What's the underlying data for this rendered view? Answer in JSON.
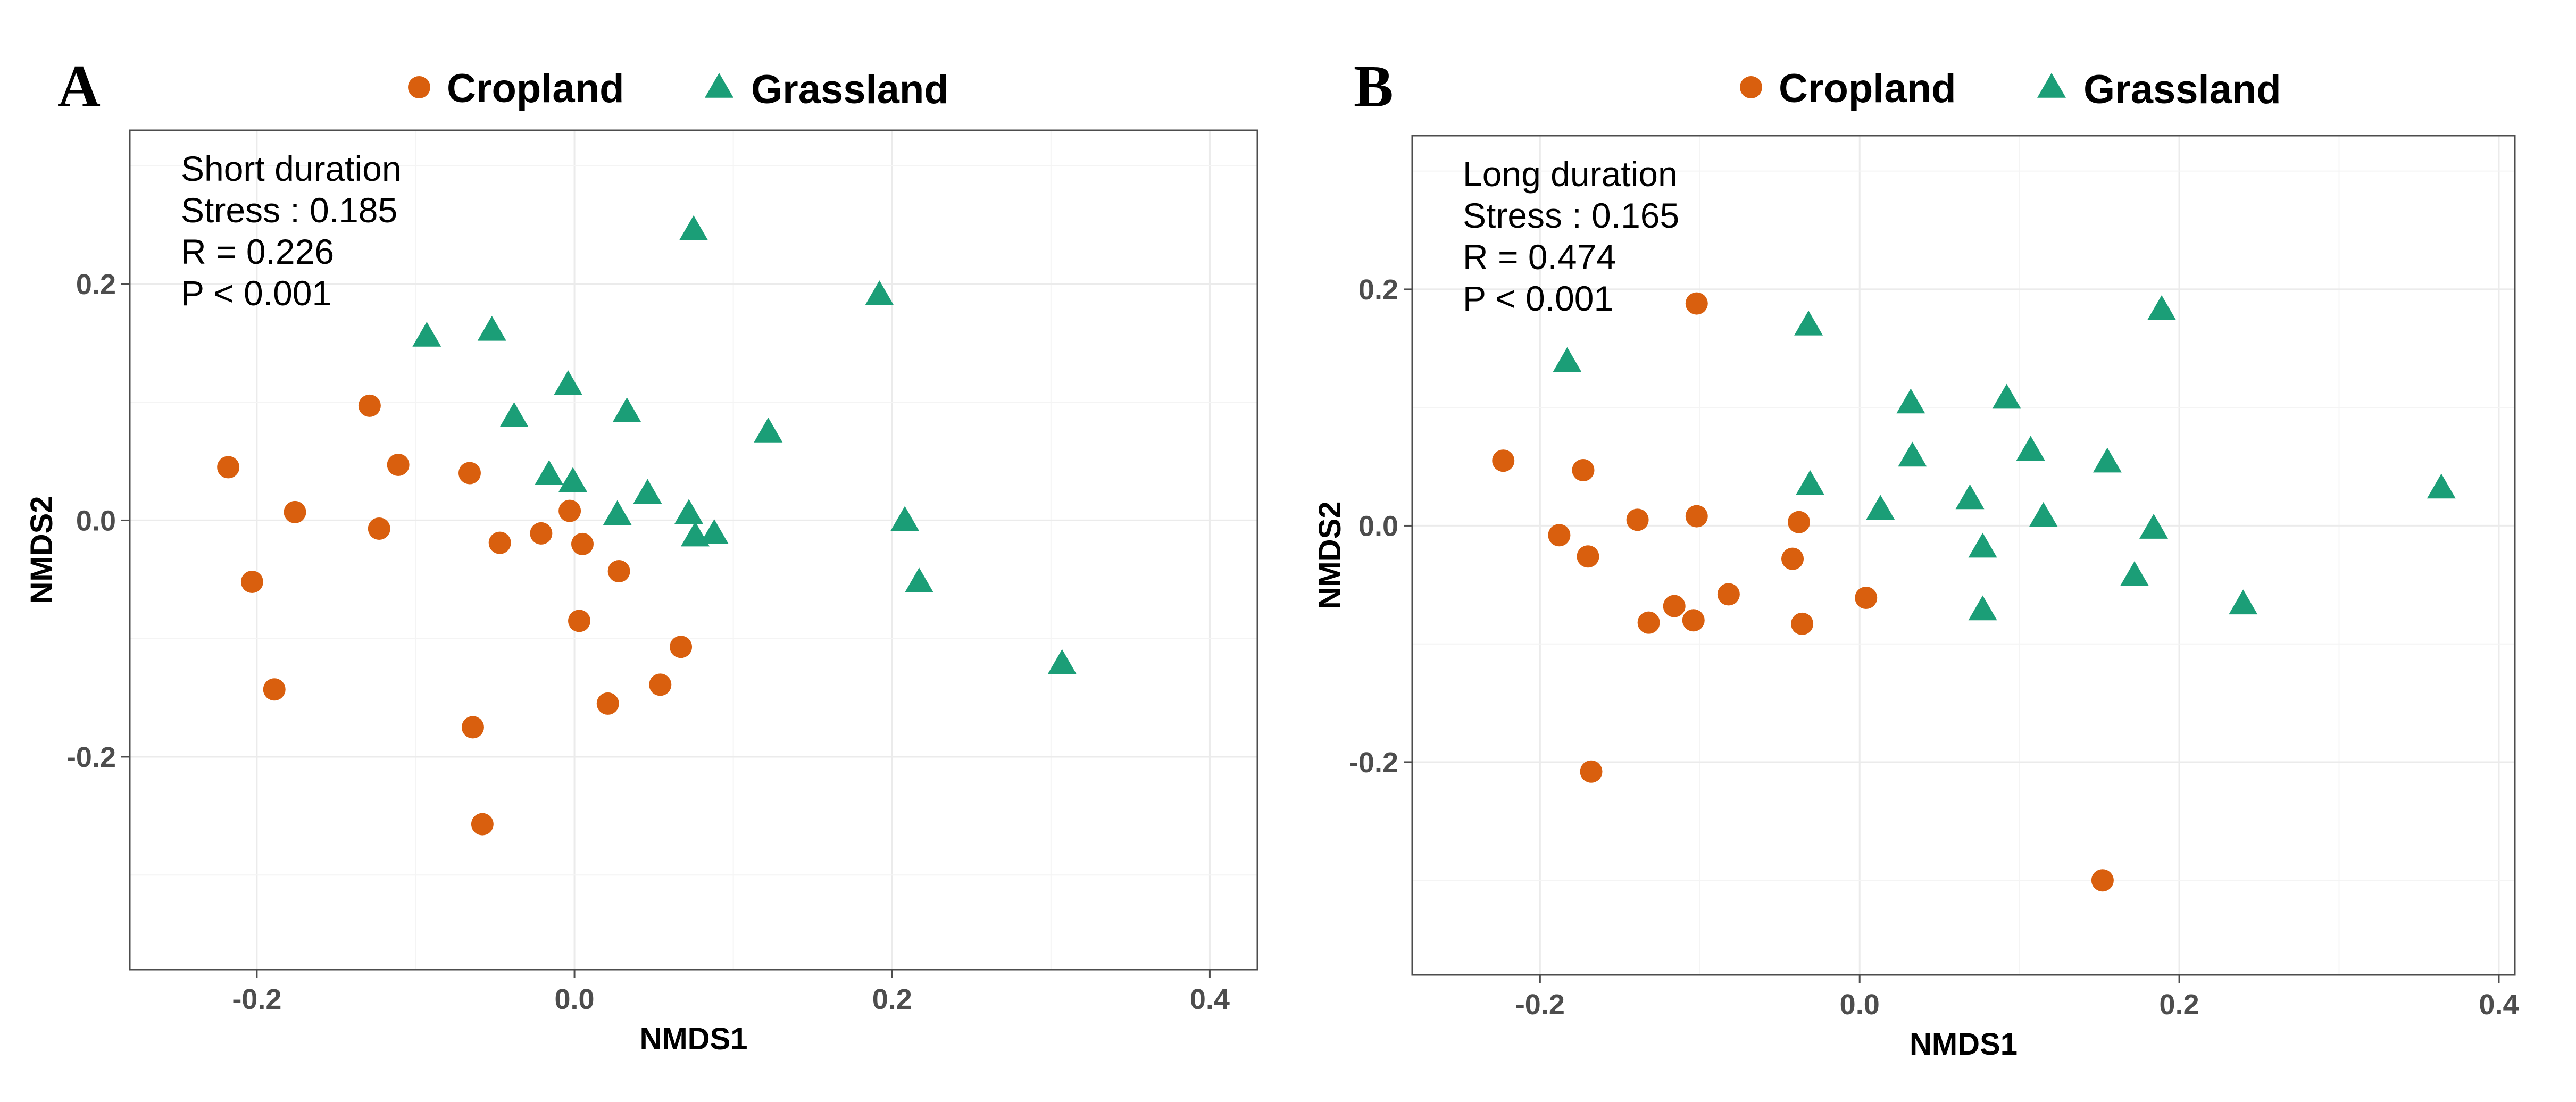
{
  "colors": {
    "cropland": "#d95f0e",
    "grassland": "#1b9e77",
    "cropland_symbol": "circle",
    "grassland_symbol": "triangle"
  },
  "chart_data": [
    {
      "type": "scatter",
      "panel_label": "A",
      "xlabel": "NMDS1",
      "ylabel": "NMDS2",
      "xlim": [
        -0.28,
        0.43
      ],
      "ylim": [
        -0.38,
        0.33
      ],
      "xticks": [
        -0.2,
        0.0,
        0.2,
        0.4
      ],
      "yticks": [
        -0.2,
        0.0,
        0.2
      ],
      "xtick_labels": [
        "-0.2",
        "0.0",
        "0.2",
        "0.4"
      ],
      "ytick_labels": [
        "-0.2",
        "0.0",
        "0.2"
      ],
      "grid": true,
      "legend_position": "top",
      "legend": [
        "Cropland",
        "Grassland"
      ],
      "annotation": [
        "Short duration",
        "Stress : 0.185",
        "R = 0.226",
        "P < 0.001"
      ],
      "series": [
        {
          "name": "Cropland",
          "points": [
            [
              -0.218,
              0.045
            ],
            [
              -0.203,
              -0.052
            ],
            [
              -0.189,
              -0.143
            ],
            [
              -0.176,
              0.007
            ],
            [
              -0.129,
              0.097
            ],
            [
              -0.123,
              -0.007
            ],
            [
              -0.111,
              0.047
            ],
            [
              -0.066,
              0.04
            ],
            [
              -0.064,
              -0.175
            ],
            [
              -0.058,
              -0.257
            ],
            [
              -0.047,
              -0.019
            ],
            [
              -0.021,
              -0.011
            ],
            [
              -0.003,
              0.008
            ],
            [
              0.003,
              -0.085
            ],
            [
              0.005,
              -0.02
            ],
            [
              0.021,
              -0.155
            ],
            [
              0.028,
              -0.043
            ],
            [
              0.054,
              -0.139
            ],
            [
              0.067,
              -0.107
            ]
          ]
        },
        {
          "name": "Grassland",
          "points": [
            [
              -0.093,
              0.155
            ],
            [
              -0.052,
              0.16
            ],
            [
              -0.038,
              0.087
            ],
            [
              -0.016,
              0.038
            ],
            [
              -0.004,
              0.114
            ],
            [
              -0.001,
              0.032
            ],
            [
              0.027,
              0.004
            ],
            [
              0.033,
              0.091
            ],
            [
              0.046,
              0.022
            ],
            [
              0.072,
              0.005
            ],
            [
              0.075,
              0.245
            ],
            [
              0.076,
              -0.014
            ],
            [
              0.088,
              -0.012
            ],
            [
              0.122,
              0.074
            ],
            [
              0.192,
              0.19
            ],
            [
              0.208,
              -0.001
            ],
            [
              0.217,
              -0.053
            ],
            [
              0.307,
              -0.122
            ]
          ]
        }
      ]
    },
    {
      "type": "scatter",
      "panel_label": "B",
      "xlabel": "NMDS1",
      "ylabel": "NMDS2",
      "xlim": [
        -0.28,
        0.41
      ],
      "ylim": [
        -0.38,
        0.33
      ],
      "xticks": [
        -0.2,
        0.0,
        0.2,
        0.4
      ],
      "yticks": [
        -0.2,
        0.0,
        0.2
      ],
      "xtick_labels": [
        "-0.2",
        "0.0",
        "0.2",
        "0.4"
      ],
      "ytick_labels": [
        "-0.2",
        "0.0",
        "0.2"
      ],
      "grid": true,
      "legend_position": "top",
      "legend": [
        "Cropland",
        "Grassland"
      ],
      "annotation": [
        "Long duration",
        "Stress : 0.165",
        "R = 0.474",
        "P < 0.001"
      ],
      "series": [
        {
          "name": "Cropland",
          "points": [
            [
              -0.223,
              0.055
            ],
            [
              -0.188,
              -0.008
            ],
            [
              -0.173,
              0.047
            ],
            [
              -0.17,
              -0.026
            ],
            [
              -0.168,
              -0.208
            ],
            [
              -0.139,
              0.005
            ],
            [
              -0.132,
              -0.082
            ],
            [
              -0.116,
              -0.068
            ],
            [
              -0.104,
              -0.08
            ],
            [
              -0.102,
              0.008
            ],
            [
              -0.102,
              0.188
            ],
            [
              -0.082,
              -0.058
            ],
            [
              -0.042,
              -0.028
            ],
            [
              -0.038,
              0.003
            ],
            [
              -0.036,
              -0.083
            ],
            [
              0.004,
              -0.061
            ],
            [
              0.152,
              -0.3
            ]
          ]
        },
        {
          "name": "Grassland",
          "points": [
            [
              -0.183,
              0.138
            ],
            [
              -0.032,
              0.169
            ],
            [
              -0.031,
              0.034
            ],
            [
              0.013,
              0.013
            ],
            [
              0.032,
              0.103
            ],
            [
              0.033,
              0.058
            ],
            [
              0.069,
              0.022
            ],
            [
              0.077,
              -0.019
            ],
            [
              0.077,
              -0.072
            ],
            [
              0.092,
              0.107
            ],
            [
              0.107,
              0.063
            ],
            [
              0.115,
              0.007
            ],
            [
              0.155,
              0.053
            ],
            [
              0.172,
              -0.043
            ],
            [
              0.184,
              -0.003
            ],
            [
              0.189,
              0.182
            ],
            [
              0.24,
              -0.067
            ],
            [
              0.364,
              0.031
            ]
          ]
        }
      ]
    }
  ]
}
